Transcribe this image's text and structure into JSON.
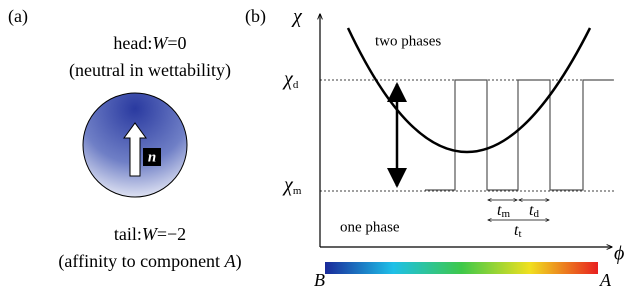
{
  "panel_a": {
    "label": "(a)",
    "head": {
      "prefix": "head:",
      "var": "W",
      "suffix": "=0"
    },
    "head_note": "(neutral in wettability)",
    "vector": "n",
    "tail": {
      "prefix": "tail:",
      "var": "W",
      "suffix": "=−2"
    },
    "tail_note": {
      "prefix": "(affinity to component ",
      "var": "A",
      "suffix": ")"
    }
  },
  "panel_b": {
    "label": "(b)",
    "y_axis": "χ",
    "x_axis": "ϕ",
    "chi_d": {
      "symbol": "χ",
      "sub": "d"
    },
    "chi_m": {
      "symbol": "χ",
      "sub": "m"
    },
    "upper_region": "two phases",
    "lower_region": "one phase",
    "t_m": {
      "symbol": "t",
      "sub": "m"
    },
    "t_d": {
      "symbol": "t",
      "sub": "d"
    },
    "t_t": {
      "symbol": "t",
      "sub": "t"
    },
    "colorbar_left": "B",
    "colorbar_right": "A"
  }
}
